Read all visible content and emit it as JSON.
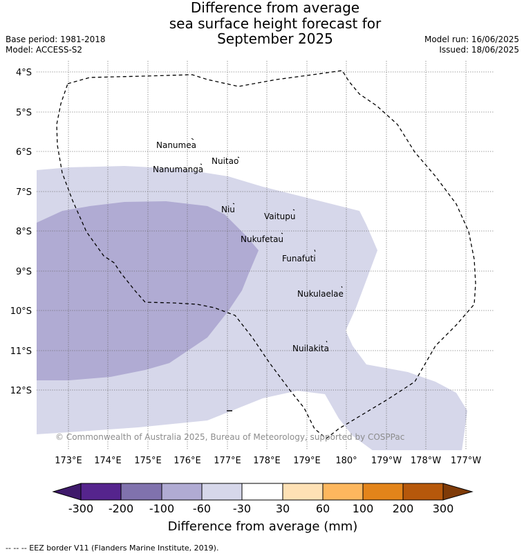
{
  "title_lines": [
    "Difference from average",
    "sea surface height forecast for",
    "September 2025"
  ],
  "meta": {
    "base_period": "Base period: 1981-2018",
    "model": "Model: ACCESS-S2",
    "model_run": "Model run: 16/06/2025",
    "issued": "Issued: 18/06/2025"
  },
  "map": {
    "lat_ticks": [
      "4°S",
      "5°S",
      "6°S",
      "7°S",
      "8°S",
      "9°S",
      "10°S",
      "11°S",
      "12°S"
    ],
    "lon_ticks": [
      "173°E",
      "174°E",
      "175°E",
      "176°E",
      "177°E",
      "178°E",
      "179°E",
      "180°",
      "179°W",
      "178°W",
      "177°W"
    ],
    "places": [
      "Nanumea",
      "Nuitao",
      "Nanumanga",
      "Niu",
      "Vaitupu",
      "Nukufetau",
      "Funafuti",
      "Nukulaelae",
      "Nuilakita"
    ],
    "copyright": "© Commonwealth of Australia 2025, Bureau of Meteorology, supported by COSPPac",
    "colors": {
      "band_minus60_minus30": "#d6d7ea",
      "band_minus100_minus60": "#b0abd3"
    }
  },
  "colorbar": {
    "labels": [
      "-300",
      "-200",
      "-100",
      "-60",
      "-30",
      "30",
      "60",
      "100",
      "200",
      "300"
    ],
    "colors": [
      "#3f1a6b",
      "#55248d",
      "#8072ad",
      "#b0abd3",
      "#d6d7ea",
      "#ffffff",
      "#fee1b5",
      "#fdb75e",
      "#e3841a",
      "#b6580b",
      "#7f3b08"
    ],
    "title": "Difference from average (mm)"
  },
  "footer": "-- -- -- EEZ border V11 (Flanders Marine Institute, 2019)."
}
